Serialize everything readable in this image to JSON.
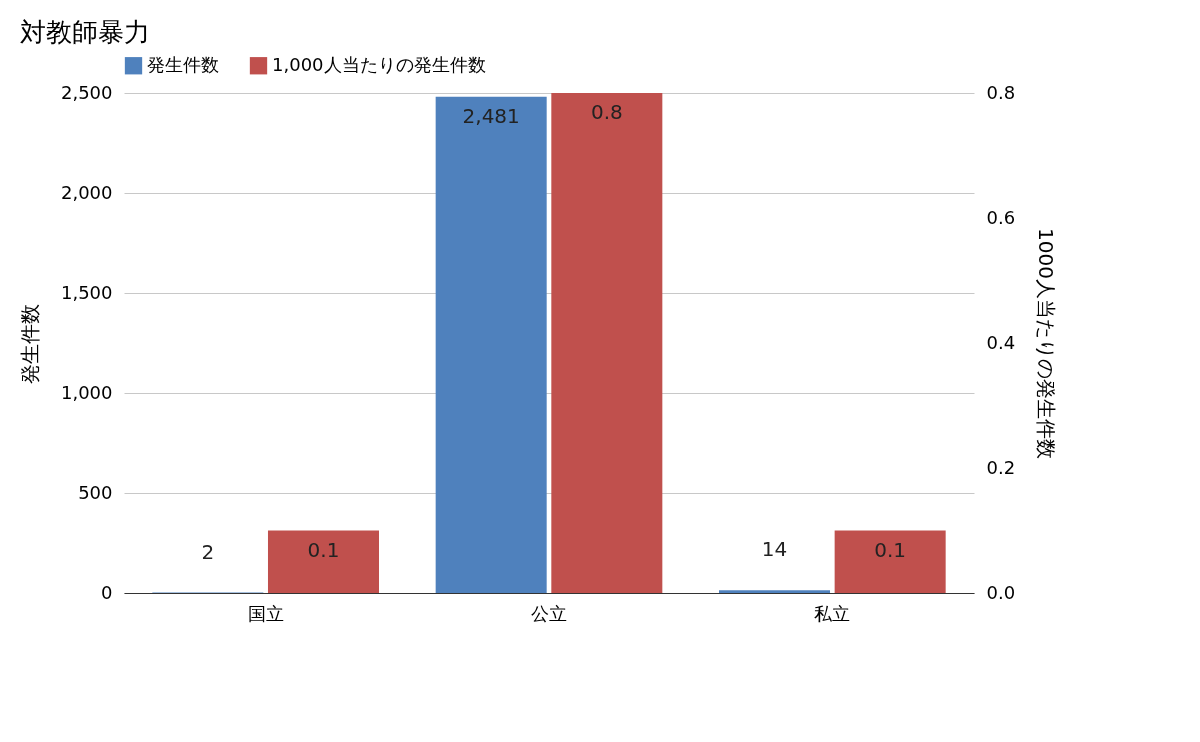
{
  "chart_data": {
    "type": "bar",
    "title": "対教師暴力",
    "categories": [
      "国立",
      "公立",
      "私立"
    ],
    "series": [
      {
        "name": "発生件数",
        "color": "#4f81bd",
        "values": [
          2,
          2481,
          14
        ],
        "value_labels": [
          "2",
          "2,481",
          "14"
        ]
      },
      {
        "name": "1,000人当たりの発生件数",
        "color": "#c0504d",
        "values": [
          0.1,
          0.8,
          0.1
        ],
        "axis": "y2",
        "value_labels": [
          "0.1",
          "0.8",
          "0.1"
        ]
      }
    ],
    "ylabel": "発生件数",
    "y2label": "1000人当たりの発生件数",
    "ylim": [
      0,
      2500
    ],
    "yticks": [
      0,
      {
        "value": 500,
        "label": "500"
      },
      {
        "value": 1000,
        "label": "1,000"
      },
      {
        "value": 1500,
        "label": "1,500"
      },
      {
        "value": 2000,
        "label": "2,000"
      },
      {
        "value": 2500,
        "label": "2,500"
      }
    ],
    "y2lim": [
      0,
      0.8
    ],
    "y2ticks": [
      {
        "value": 0,
        "label": "0.0"
      },
      0.2,
      0.4,
      0.6,
      0.8
    ],
    "grid": "y",
    "legend": "top"
  }
}
